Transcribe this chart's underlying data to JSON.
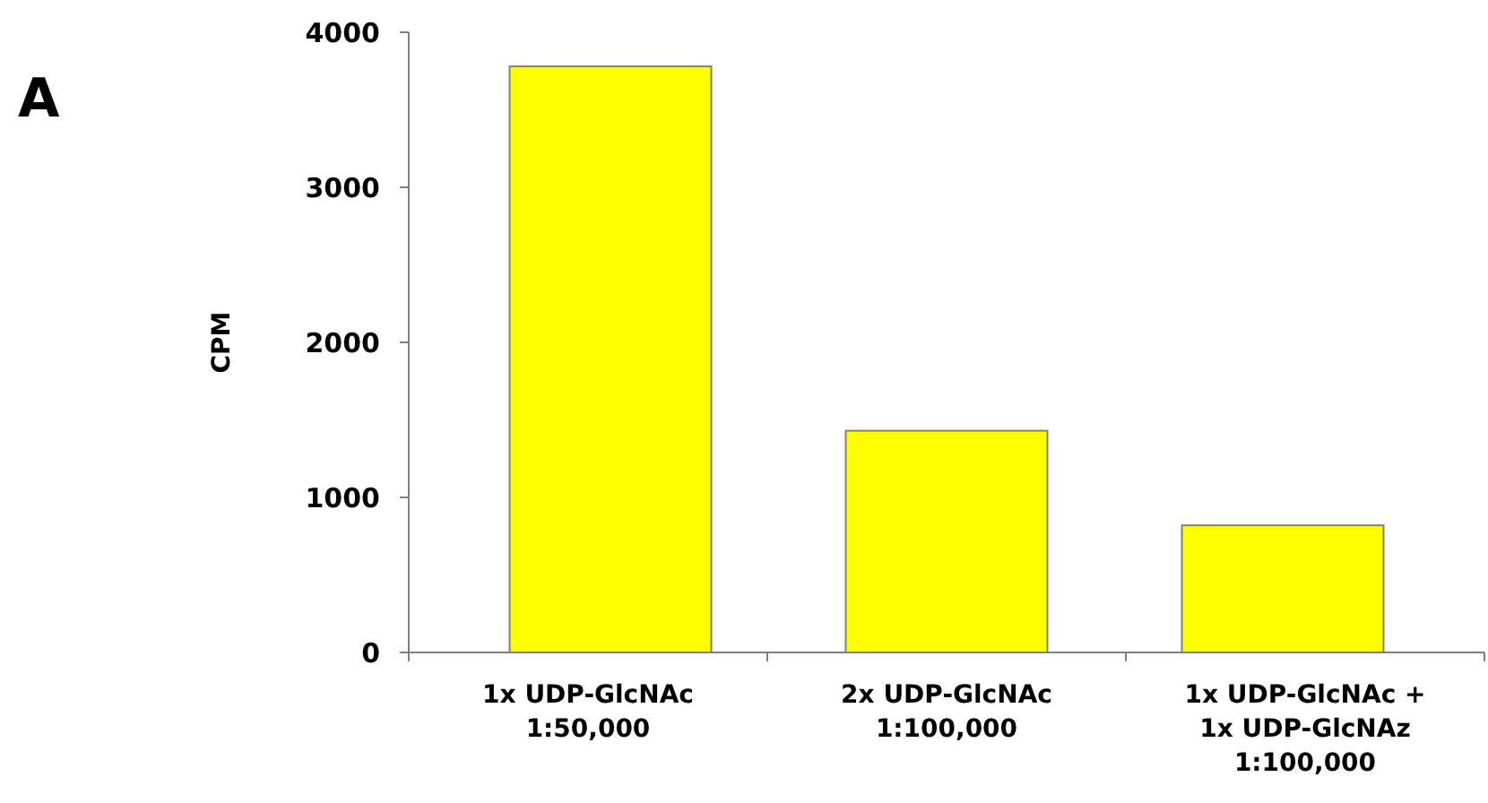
{
  "chart_data": {
    "type": "bar",
    "ylabel": "CPM",
    "annotations": [
      "A"
    ],
    "categories": [
      "1x UDP-GlcNAc\n1:50,000",
      "2x UDP-GlcNAc\n1:100,000",
      "1x UDP-GlcNAc +\n1x UDP-GlcNAz\n1:100,000"
    ],
    "values": [
      3780,
      1430,
      820
    ],
    "color": "#ffff00",
    "ylim": [
      0,
      4000
    ],
    "yticks": [
      0,
      1000,
      2000,
      3000,
      4000
    ],
    "grid": false
  }
}
